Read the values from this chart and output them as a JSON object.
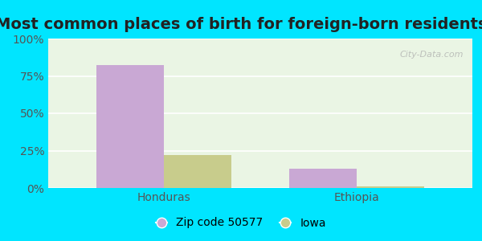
{
  "title": "Most common places of birth for foreign-born residents",
  "categories": [
    "Honduras",
    "Ethiopia"
  ],
  "series": [
    {
      "name": "Zip code 50577",
      "values": [
        82,
        13
      ],
      "color": "#c9a8d4"
    },
    {
      "name": "Iowa",
      "values": [
        22,
        1
      ],
      "color": "#c8cc8c"
    }
  ],
  "ylim": [
    0,
    100
  ],
  "yticks": [
    0,
    25,
    50,
    75,
    100
  ],
  "ytick_labels": [
    "0%",
    "25%",
    "50%",
    "75%",
    "100%"
  ],
  "bar_width": 0.35,
  "background_outer": "#00e5ff",
  "plot_bg": "#eaf5e4",
  "title_fontsize": 14,
  "tick_fontsize": 10,
  "legend_fontsize": 10,
  "watermark": "City-Data.com"
}
